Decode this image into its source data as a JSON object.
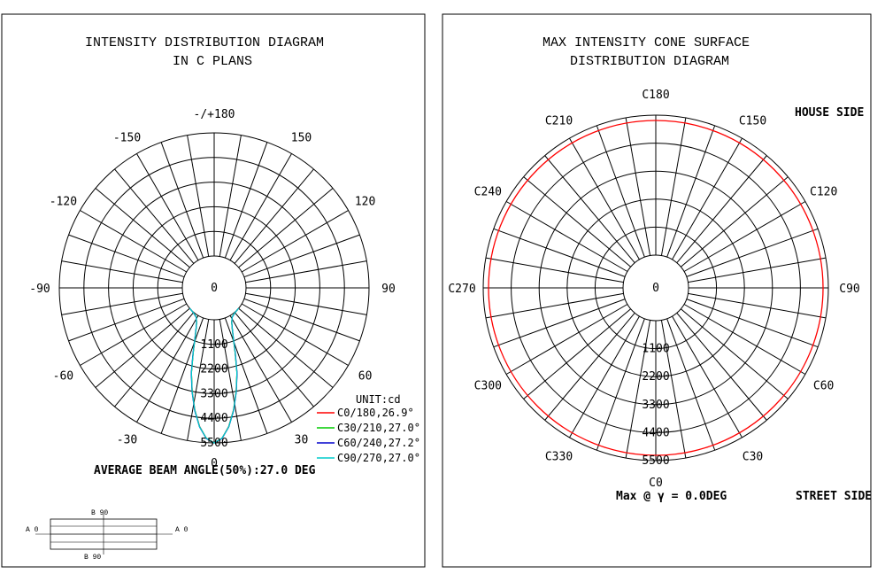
{
  "chart_data": [
    {
      "type": "polar-line",
      "title": [
        "INTENSITY DISTRIBUTION DIAGRAM",
        "IN C PLANS"
      ],
      "angle_labels": [
        {
          "text": "-/+180",
          "deg": 180
        },
        {
          "text": "150",
          "deg": 150
        },
        {
          "text": "-150",
          "deg": -150
        },
        {
          "text": "120",
          "deg": 120
        },
        {
          "text": "-120",
          "deg": -120
        },
        {
          "text": "90",
          "deg": 90
        },
        {
          "text": "-90",
          "deg": -90
        },
        {
          "text": "60",
          "deg": 60
        },
        {
          "text": "-60",
          "deg": -60
        },
        {
          "text": "30",
          "deg": 30
        },
        {
          "text": "-30",
          "deg": -30
        },
        {
          "text": "0",
          "deg": 0
        }
      ],
      "radial_labels": [
        "0",
        "1100",
        "2200",
        "3300",
        "4400",
        "5500"
      ],
      "radial_values": [
        0,
        1100,
        2200,
        3300,
        4400,
        5500
      ],
      "rmax": 5500,
      "unit": "UNIT:cd",
      "legend": [
        {
          "text": "C0/180,26.9°",
          "color": "#ff0000"
        },
        {
          "text": "C30/210,27.0°",
          "color": "#00cc00"
        },
        {
          "text": "C60/240,27.2°",
          "color": "#0000cc"
        },
        {
          "text": "C90/270,27.0°",
          "color": "#00cccc"
        }
      ],
      "series": [
        {
          "color": "#ff0000",
          "points": [
            [
              0,
              5500
            ],
            [
              3,
              5300
            ],
            [
              6,
              4800
            ],
            [
              9,
              4100
            ],
            [
              12,
              3300
            ],
            [
              15,
              2500
            ],
            [
              18,
              1600
            ],
            [
              21,
              950
            ],
            [
              24,
              550
            ],
            [
              27,
              300
            ],
            [
              32,
              100
            ],
            [
              40,
              20
            ],
            [
              50,
              0
            ]
          ]
        },
        {
          "color": "#00cc00",
          "points": [
            [
              0,
              5500
            ],
            [
              3,
              5300
            ],
            [
              6,
              4810
            ],
            [
              9,
              4110
            ],
            [
              12,
              3310
            ],
            [
              15,
              2510
            ],
            [
              18,
              1610
            ],
            [
              21,
              960
            ],
            [
              24,
              560
            ],
            [
              27,
              305
            ],
            [
              32,
              100
            ],
            [
              40,
              20
            ],
            [
              50,
              0
            ]
          ]
        },
        {
          "color": "#0000cc",
          "points": [
            [
              0,
              5500
            ],
            [
              3,
              5310
            ],
            [
              6,
              4820
            ],
            [
              9,
              4130
            ],
            [
              12,
              3330
            ],
            [
              15,
              2530
            ],
            [
              18,
              1630
            ],
            [
              21,
              970
            ],
            [
              24,
              570
            ],
            [
              27,
              310
            ],
            [
              32,
              105
            ],
            [
              40,
              22
            ],
            [
              50,
              0
            ]
          ]
        },
        {
          "color": "#00cccc",
          "points": [
            [
              0,
              5500
            ],
            [
              3,
              5300
            ],
            [
              6,
              4810
            ],
            [
              9,
              4110
            ],
            [
              12,
              3310
            ],
            [
              15,
              2510
            ],
            [
              18,
              1610
            ],
            [
              21,
              960
            ],
            [
              24,
              560
            ],
            [
              27,
              305
            ],
            [
              32,
              100
            ],
            [
              40,
              20
            ],
            [
              50,
              0
            ]
          ]
        }
      ],
      "footer": "AVERAGE BEAM ANGLE(50%):27.0 DEG"
    },
    {
      "type": "polar-cone",
      "title": [
        "MAX INTENSITY CONE SURFACE",
        "DISTRIBUTION DIAGRAM"
      ],
      "angle_labels": [
        {
          "text": "C180",
          "deg": 180
        },
        {
          "text": "C150",
          "deg": 150
        },
        {
          "text": "C210",
          "deg": 210
        },
        {
          "text": "C120",
          "deg": 120
        },
        {
          "text": "C240",
          "deg": 240
        },
        {
          "text": "C90",
          "deg": 90
        },
        {
          "text": "C270",
          "deg": 270
        },
        {
          "text": "C60",
          "deg": 60
        },
        {
          "text": "C300",
          "deg": 300
        },
        {
          "text": "C30",
          "deg": 30
        },
        {
          "text": "C330",
          "deg": 330
        },
        {
          "text": "C0",
          "deg": 0
        }
      ],
      "radial_labels": [
        "0",
        "1100",
        "2200",
        "3300",
        "4400",
        "5500"
      ],
      "radial_values": [
        0,
        1100,
        2200,
        3300,
        4400,
        5500
      ],
      "rmax": 5500,
      "cone_value": 5500,
      "cone_color": "#ff0000",
      "house_side": "HOUSE SIDE",
      "street_side": "STREET SIDE",
      "footer": "Max @ γ = 0.0DEG"
    }
  ],
  "luminaire_diagram": {
    "b_top": "B 90",
    "b_bottom": "B 90",
    "a_left": "A 0",
    "a_right": "A 0"
  }
}
